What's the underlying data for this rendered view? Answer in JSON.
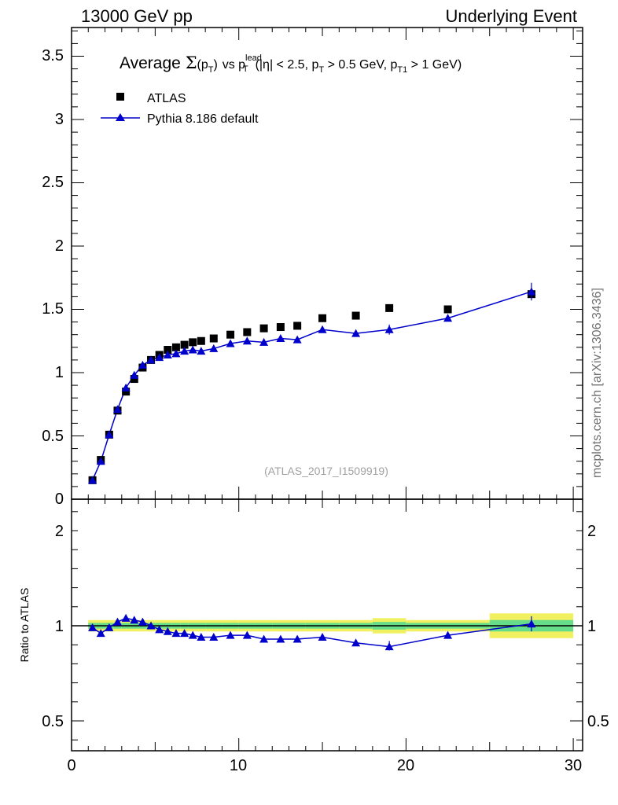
{
  "header": {
    "left": "13000 GeV pp",
    "right": "Underlying Event"
  },
  "title": {
    "prefix": "Average",
    "sigma": "Σ",
    "p": "p",
    "sub_T": "T",
    "vs": "vs p",
    "sup_lead": "lead",
    "eta_part": "(|η| < 2.5, p",
    "mid": "> 0.5 GeV, p",
    "sub_T1": "T1",
    "end": "> 1 GeV)"
  },
  "side_label": "mcplots.cern.ch [arXiv:1306.3436]",
  "analysis_id": "(ATLAS_2017_I1509919)",
  "ratio_ylabel": "Ratio to ATLAS",
  "colors": {
    "data": "#000000",
    "mc": "#0000cc",
    "band_inner": "#66dd88",
    "band_outer": "#f0f060"
  },
  "chart_data": [
    {
      "type": "scatter",
      "xlim": [
        0,
        30
      ],
      "ylim": [
        0,
        3.7
      ],
      "y_ticks": [
        "0",
        "0.5",
        "1",
        "1.5",
        "2",
        "2.5",
        "3",
        "3.5"
      ],
      "legend": {
        "placement": "top-left",
        "entries": [
          "ATLAS",
          "Pythia 8.186 default"
        ]
      },
      "series": [
        {
          "name": "ATLAS",
          "x": [
            1.25,
            1.75,
            2.25,
            2.75,
            3.25,
            3.75,
            4.25,
            4.75,
            5.25,
            5.75,
            6.25,
            6.75,
            7.25,
            7.75,
            8.5,
            9.5,
            10.5,
            11.5,
            12.5,
            13.5,
            15,
            17,
            19,
            22.5,
            27.5
          ],
          "y": [
            0.15,
            0.31,
            0.51,
            0.7,
            0.85,
            0.95,
            1.04,
            1.1,
            1.14,
            1.18,
            1.2,
            1.22,
            1.24,
            1.25,
            1.27,
            1.3,
            1.32,
            1.35,
            1.36,
            1.37,
            1.43,
            1.45,
            1.51,
            1.5,
            1.62
          ]
        },
        {
          "name": "Pythia 8.186 default",
          "x": [
            1.25,
            1.75,
            2.25,
            2.75,
            3.25,
            3.75,
            4.25,
            4.75,
            5.25,
            5.75,
            6.25,
            6.75,
            7.25,
            7.75,
            8.5,
            9.5,
            10.5,
            11.5,
            12.5,
            13.5,
            15,
            17,
            19,
            22.5,
            27.5
          ],
          "y": [
            0.15,
            0.3,
            0.51,
            0.71,
            0.88,
            0.98,
            1.06,
            1.1,
            1.12,
            1.14,
            1.15,
            1.17,
            1.18,
            1.17,
            1.19,
            1.23,
            1.25,
            1.24,
            1.27,
            1.26,
            1.34,
            1.31,
            1.34,
            1.43,
            1.64
          ]
        }
      ]
    },
    {
      "type": "line",
      "xlim": [
        0,
        30
      ],
      "ylim": [
        0.33,
        2.3
      ],
      "ylabel": "Ratio to ATLAS",
      "y_ticks": [
        "0.5",
        "1",
        "2"
      ],
      "y_tick_values": [
        0.5,
        1,
        2
      ],
      "x_ticks": [
        "0",
        "10",
        "20",
        "30"
      ],
      "x_tick_values": [
        0,
        10,
        20,
        30
      ],
      "series": [
        {
          "name": "Pythia 8.186 default",
          "x": [
            1.25,
            1.75,
            2.25,
            2.75,
            3.25,
            3.75,
            4.25,
            4.75,
            5.25,
            5.75,
            6.25,
            6.75,
            7.25,
            7.75,
            8.5,
            9.5,
            10.5,
            11.5,
            12.5,
            13.5,
            15,
            17,
            19,
            22.5,
            27.5
          ],
          "y": [
            0.99,
            0.96,
            0.99,
            1.02,
            1.04,
            1.03,
            1.02,
            1.0,
            0.98,
            0.97,
            0.96,
            0.96,
            0.95,
            0.94,
            0.94,
            0.95,
            0.95,
            0.93,
            0.93,
            0.93,
            0.94,
            0.91,
            0.89,
            0.95,
            1.01
          ]
        }
      ]
    }
  ]
}
